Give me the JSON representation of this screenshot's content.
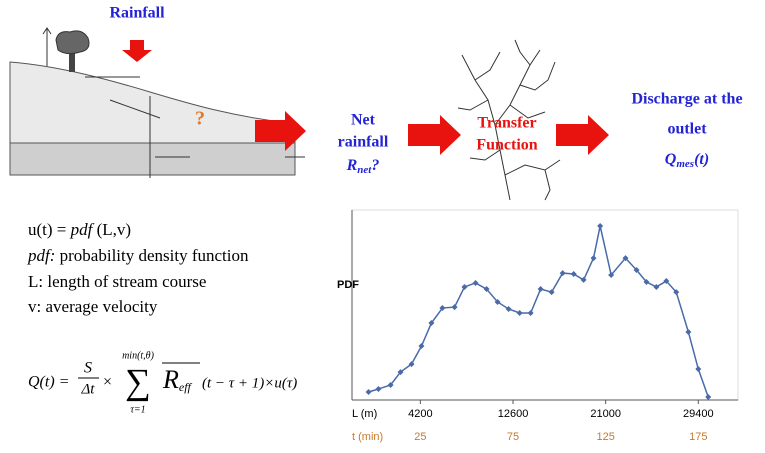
{
  "diagram": {
    "rainfall": "Rainfall",
    "question": "?",
    "net_rainfall": {
      "line1": "Net",
      "line2": "rainfall",
      "symbol": "R",
      "subscript": "net",
      "suffix": "?"
    },
    "transfer": {
      "line1": "Transfer",
      "line2": "Function"
    },
    "discharge": {
      "line1": "Discharge at the",
      "line2": "outlet",
      "symbol": "Q",
      "subscript": "mes",
      "suffix": "(t)"
    }
  },
  "definitions": [
    [
      "u(t) = ",
      "pdf",
      " (L,v)"
    ],
    [
      "pdf:",
      " probability density function"
    ],
    [
      "L: length of stream course"
    ],
    [
      "v: average velocity"
    ]
  ],
  "formula": {
    "lhs": "Q(t) =",
    "numerator": "S",
    "denominator": "Δt",
    "times": "×",
    "sum": "∑",
    "upper": "min(t,θ)",
    "lower": "τ=1",
    "symbol": "R",
    "subscript": "eff",
    "rest": "(t − τ + 1)×u(τ)"
  },
  "chart_data": {
    "type": "line",
    "y_label": "PDF",
    "x_label": "L (m)",
    "x2_label": "t (min)",
    "x": [
      -500,
      400,
      1500,
      2400,
      3400,
      4300,
      5200,
      6200,
      7300,
      8200,
      9200,
      10200,
      11200,
      12200,
      13200,
      14200,
      15100,
      16100,
      17100,
      18100,
      19000,
      19900,
      20500,
      21500,
      22800,
      23800,
      24700,
      25600,
      26500,
      27400,
      28500,
      29400,
      30300
    ],
    "values": [
      4.2,
      5.8,
      7.9,
      14.7,
      18.9,
      28.4,
      40.5,
      48.4,
      48.9,
      59.5,
      61.6,
      58.4,
      51.6,
      47.9,
      45.8,
      45.8,
      58.4,
      56.8,
      66.8,
      66.3,
      63.2,
      74.7,
      91.6,
      65.8,
      74.7,
      68.4,
      62.1,
      59.5,
      62.6,
      56.8,
      35.8,
      16.3,
      1.6
    ],
    "color": "#4a6aa8",
    "xlim": [
      -2000,
      33000
    ],
    "xticks": [
      4200,
      12600,
      21000,
      29400
    ],
    "x2lim": [
      -11.9,
      196.4
    ],
    "x2ticks": [
      25,
      75,
      125,
      175
    ],
    "ylim": [
      0,
      100
    ]
  }
}
